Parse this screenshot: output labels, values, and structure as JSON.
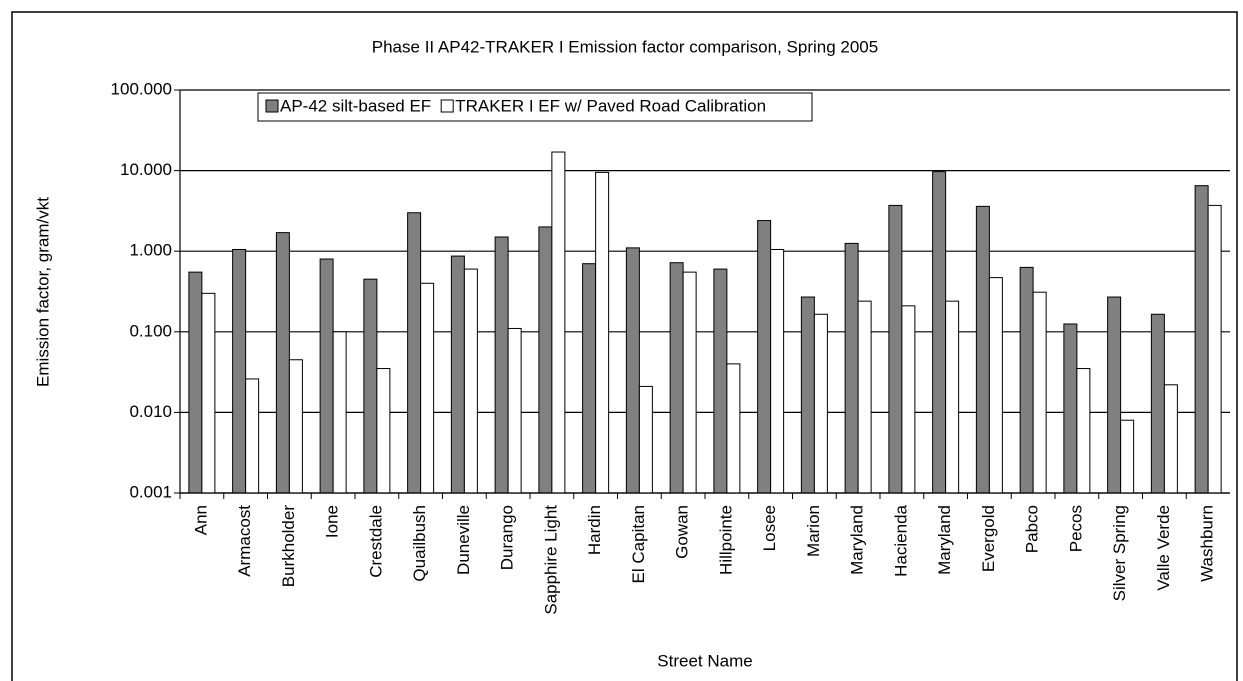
{
  "chart_data": {
    "type": "bar",
    "log_scale": true,
    "grid": true,
    "legend_position": "top",
    "title": "Phase II AP42-TRAKER I Emission factor comparison, Spring 2005",
    "x_label": "Street Name",
    "y_label": "Emission factor, gram/vkt",
    "categories": [
      "Ann",
      "Armacost",
      "Burkholder",
      "Ione",
      "Crestdale",
      "Quailbush",
      "Duneville",
      "Durango",
      "Sapphire Light",
      "Hardin",
      "El Capitan",
      "Gowan",
      "Hillpointe",
      "Losee",
      "Marion",
      "Maryland",
      "Hacienda",
      "Maryland",
      "Evergold",
      "Pabco",
      "Pecos",
      "Silver Spring",
      "Valle Verde",
      "Washburn"
    ],
    "series": [
      {
        "name": "AP-42 silt-based EF",
        "color": "#808080",
        "values": [
          0.55,
          1.05,
          1.7,
          0.8,
          0.45,
          3.0,
          0.87,
          1.5,
          2.0,
          0.7,
          1.1,
          0.72,
          0.6,
          2.4,
          0.27,
          1.25,
          3.7,
          9.7,
          3.6,
          0.63,
          0.125,
          0.27,
          0.165,
          6.5
        ]
      },
      {
        "name": "TRAKER I EF w/ Paved Road Calibration",
        "color": "#ffffff",
        "values": [
          0.3,
          0.026,
          0.045,
          0.1,
          0.035,
          0.4,
          0.6,
          0.11,
          17,
          9.5,
          0.021,
          0.55,
          0.04,
          1.05,
          0.165,
          0.24,
          0.21,
          0.24,
          0.47,
          0.31,
          0.035,
          0.008,
          0.022,
          3.7
        ]
      }
    ],
    "ylim": [
      0.001,
      100
    ],
    "yticks": [
      0.001,
      {
        "value": 0.01,
        "label": "0.010"
      },
      {
        "value": 0.1,
        "label": "0.100"
      },
      {
        "value": 1,
        "label": "1.000"
      },
      {
        "value": 10,
        "label": "10.000"
      },
      {
        "value": 100,
        "label": "100.000"
      }
    ]
  }
}
